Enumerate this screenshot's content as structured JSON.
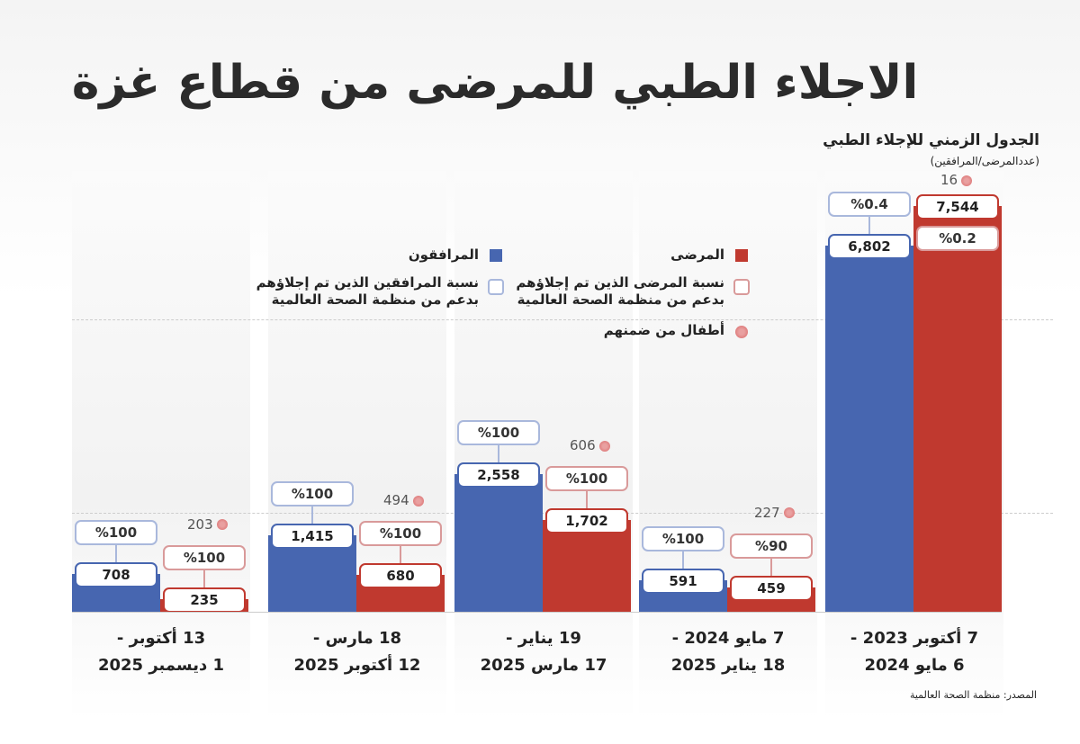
{
  "title": "الاجلاء الطبي للمرضى من قطاع غزة",
  "subtitle": "الجدول الزمني للإجلاء الطبي",
  "unit": "(عددالمرضى/المرافقين)",
  "source": "المصدر: منظمة الصحة العالمية",
  "colors": {
    "patients": "#c0392f",
    "companions": "#4766b0",
    "patients_outline": "#d99a9a",
    "companions_outline": "#a9b8dc"
  },
  "legend": {
    "patients": "المرضى",
    "companions": "المرافقون",
    "patients_pct": "نسبة المرضى الذين تم إجلاؤهم بدعم من منظمة الصحة العالمية",
    "companions_pct": "نسبة المرافقين الذين تم إجلاؤهم بدعم من منظمة الصحة العالمية",
    "children": "أطفال من ضمنهم"
  },
  "chart_data": {
    "type": "bar",
    "title": "الاجلاء الطبي للمرضى من قطاع غزة",
    "categories": [
      {
        "line1": "7 أكتوبر 2023 -",
        "line2": "6 مايو 2024"
      },
      {
        "line1": "7 مايو 2024 -",
        "line2": "18 يناير 2025"
      },
      {
        "line1": "19 يناير -",
        "line2": "17 مارس 2025"
      },
      {
        "line1": "18 مارس -",
        "line2": "12 أكتوبر 2025"
      },
      {
        "line1": "13 أكتوبر -",
        "line2": "1 ديسمبر 2025"
      }
    ],
    "series": [
      {
        "name": "المرضى",
        "values": [
          7544,
          459,
          1702,
          680,
          235
        ],
        "labels": [
          "7,544",
          "459",
          "1,702",
          "680",
          "235"
        ],
        "pct_labels": [
          "%0.2",
          "%90",
          "%100",
          "%100",
          "%100"
        ],
        "children": [
          "16",
          "227",
          "606",
          "494",
          "203"
        ]
      },
      {
        "name": "المرافقون",
        "values": [
          6802,
          591,
          2558,
          1415,
          708
        ],
        "labels": [
          "6,802",
          "591",
          "2,558",
          "1,415",
          "708"
        ],
        "pct_labels": [
          "%0.4",
          "%100",
          "%100",
          "%100",
          "%100"
        ]
      }
    ],
    "direction": "right-to-left",
    "legend": "top-center"
  }
}
